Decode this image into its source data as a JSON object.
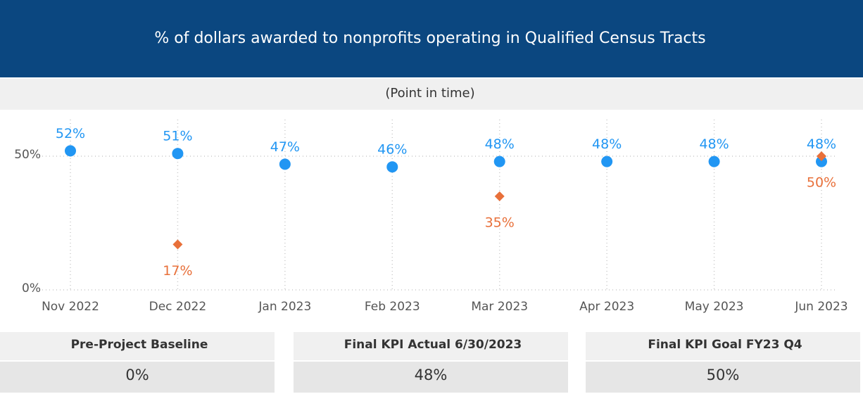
{
  "chart_data": {
    "type": "dot",
    "title": "% of dollars awarded to nonprofits operating in Qualified Census Tracts",
    "subtitle": "(Point in time)",
    "categories": [
      "Nov 2022",
      "Dec 2022",
      "Jan 2023",
      "Feb 2023",
      "Mar 2023",
      "Apr 2023",
      "May 2023",
      "Jun 2023"
    ],
    "series": [
      {
        "color": "#2196f3",
        "marker": "circle",
        "label_position": "above",
        "values": [
          52,
          51,
          47,
          46,
          48,
          48,
          48,
          48
        ],
        "value_labels": [
          "52%",
          "51%",
          "47%",
          "46%",
          "48%",
          "48%",
          "48%",
          "48%"
        ]
      },
      {
        "color": "#e8703a",
        "marker": "diamond",
        "label_position": "below",
        "values": [
          null,
          17,
          null,
          null,
          35,
          null,
          null,
          50
        ],
        "value_labels": [
          null,
          "17%",
          null,
          null,
          "35%",
          null,
          null,
          "50%"
        ]
      }
    ],
    "ylim": [
      0,
      60
    ],
    "yticks": [
      {
        "value": 0,
        "label": "0%"
      },
      {
        "value": 50,
        "label": "50%"
      }
    ],
    "grid": true
  },
  "cards": [
    {
      "label": "Pre-Project Baseline",
      "value": "0%"
    },
    {
      "label": "Final KPI Actual  6/30/2023",
      "value": "48%"
    },
    {
      "label": "Final KPI Goal  FY23 Q4",
      "value": "50%"
    }
  ]
}
